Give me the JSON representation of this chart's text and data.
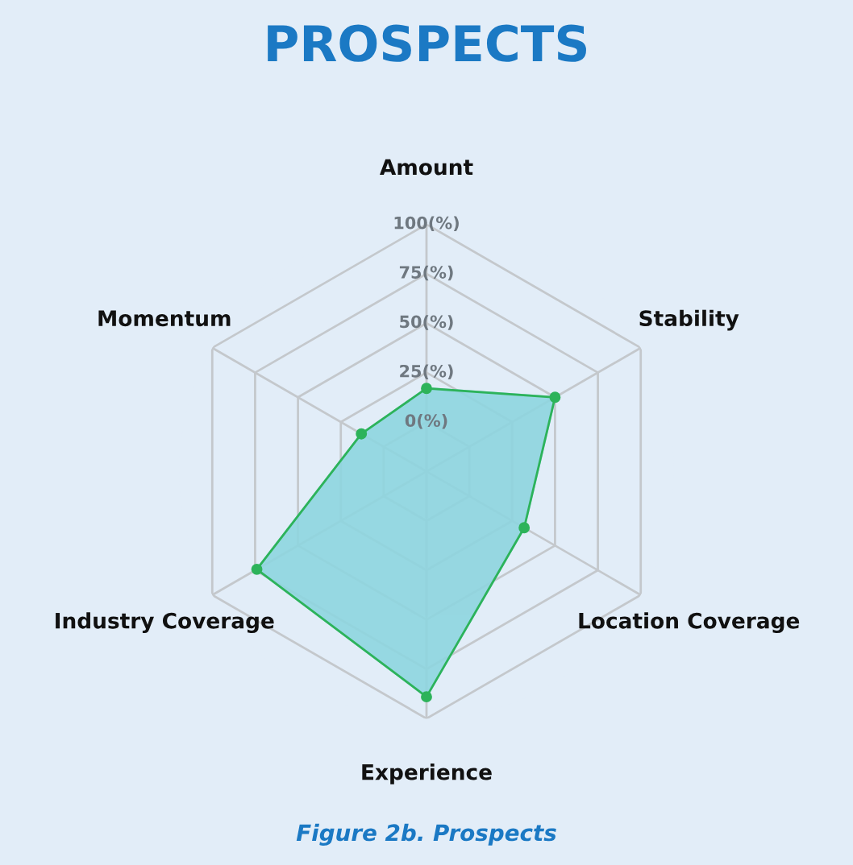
{
  "chart_data": {
    "type": "radar",
    "title": "PROSPECTS",
    "categories": [
      "Amount",
      "Stability",
      "Location Coverage",
      "Experience",
      "Industry Coverage",
      "Momentum"
    ],
    "series": [
      {
        "color": "#2db35a",
        "values": [
          17,
          50,
          32,
          89,
          74,
          13
        ]
      }
    ],
    "ylim": [
      -25,
      100
    ],
    "yticks": [
      {
        "value": 0,
        "label": "0(%)"
      },
      {
        "value": 25,
        "label": "25(%)"
      },
      {
        "value": 50,
        "label": "50(%)"
      },
      {
        "value": 75,
        "label": "75(%)"
      },
      {
        "value": 100,
        "label": "100(%)"
      }
    ],
    "grid": true,
    "marker": "circle",
    "annotations": [
      "Figure 2b. Prospects"
    ]
  }
}
